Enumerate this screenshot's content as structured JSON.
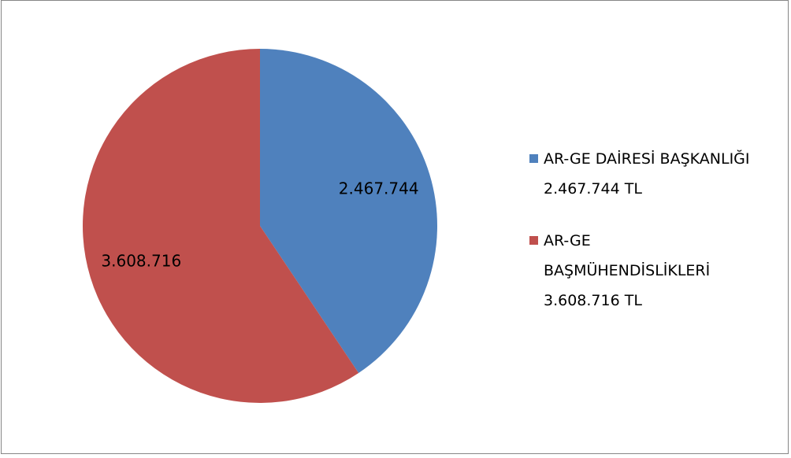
{
  "chart_data": {
    "type": "pie",
    "categories": [
      "AR-GE DAİRESİ BAŞKANLIĞI 2.467.744 TL",
      "AR-GE BAŞMÜHENDİSLİKLERİ 3.608.716 TL"
    ],
    "values": [
      2467744,
      3608716
    ],
    "value_labels": [
      "2.467.744",
      "3.608.716"
    ],
    "colors": [
      "#4f81bd",
      "#c0504d"
    ],
    "legend": "right"
  }
}
